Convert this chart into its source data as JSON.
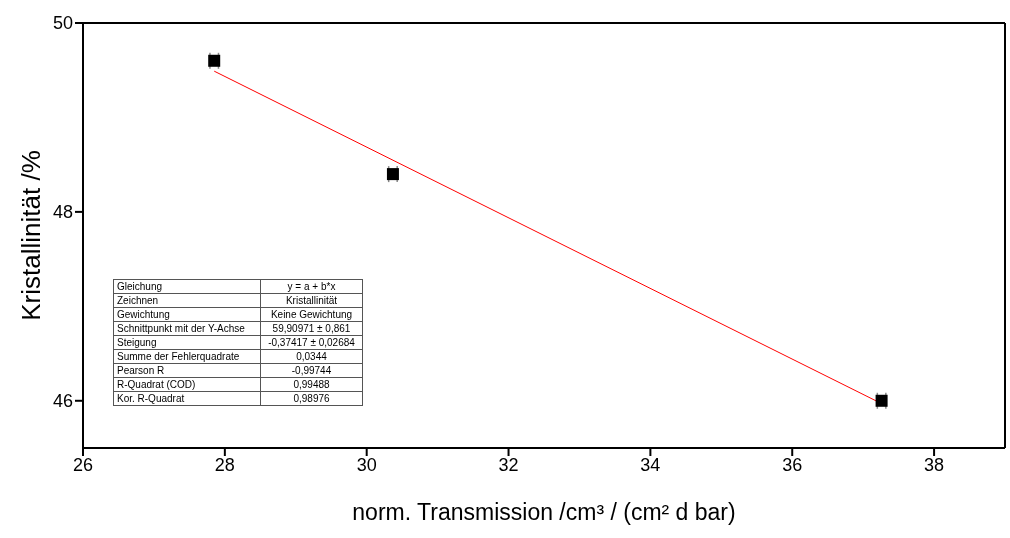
{
  "chart_data": {
    "type": "scatter",
    "xlabel": "norm. Transmission /cm³ / (cm² d bar)",
    "ylabel": "Kristallinität /%",
    "xlim": [
      26,
      39
    ],
    "xticks": [
      26,
      28,
      30,
      32,
      34,
      36,
      38
    ],
    "ylim": [
      45.5,
      50
    ],
    "yticks": [
      46,
      48,
      50
    ],
    "grid": false,
    "legend": false,
    "series": [
      {
        "marker": "square",
        "color": "#000000",
        "x": [
          27.85,
          30.37,
          37.26
        ],
        "values": [
          49.6,
          48.4,
          46.0
        ],
        "xerrors": [
          0.06,
          0.06,
          0.06
        ]
      },
      {
        "type": "line",
        "color": "#ff0000",
        "x": [
          27.85,
          37.26
        ],
        "values": [
          49.49,
          45.97
        ]
      }
    ],
    "annotations": [
      "Gleichung",
      "y = a + b*x",
      "Zeichnen",
      "Kristallinität",
      "Gewichtung",
      "Keine Gewichtung",
      "Schnittpunkt mit der Y-Achse",
      "59,90971 ± 0,861",
      "Steigung",
      "-0,37417 ± 0,02684",
      "Summe der Fehlerquadrate",
      "0,0344",
      "Pearson R",
      "-0,99744",
      "R-Quadrat (COD)",
      "0,99488",
      "Kor. R-Quadrat",
      "0,98976"
    ]
  }
}
